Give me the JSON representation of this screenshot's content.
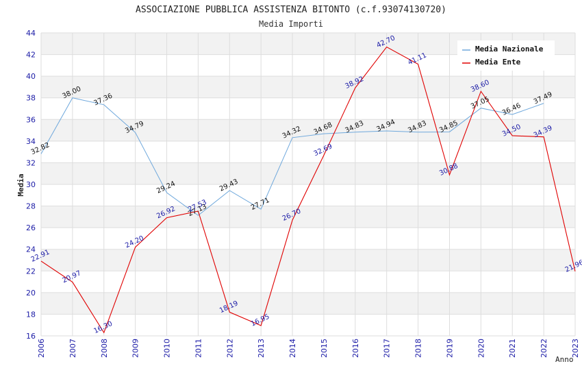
{
  "chart_data": {
    "type": "line",
    "title": "ASSOCIAZIONE PUBBLICA ASSISTENZA BITONTO (c.f.93074130720)",
    "subtitle": "Media Importi",
    "xlabel": "Anno",
    "ylabel": "Media",
    "ylim": [
      16,
      44
    ],
    "yticks": [
      16,
      18,
      20,
      22,
      24,
      26,
      28,
      30,
      32,
      34,
      36,
      38,
      40,
      42,
      44
    ],
    "x": [
      "2006",
      "2007",
      "2008",
      "2009",
      "2010",
      "2011",
      "2012",
      "2013",
      "2014",
      "2015",
      "2016",
      "2017",
      "2018",
      "2019",
      "2020",
      "2021",
      "2022",
      "2023"
    ],
    "grid": true,
    "legend_position": "top-right",
    "series": [
      {
        "name": "Media Nazionale",
        "color": "#6fa8dc",
        "values": [
          32.82,
          38.0,
          37.36,
          34.79,
          29.24,
          27.13,
          29.43,
          27.71,
          34.32,
          34.68,
          34.83,
          34.94,
          34.83,
          34.85,
          37.05,
          36.46,
          37.49,
          null
        ],
        "labels": [
          "32.82",
          "38.00",
          "37.36",
          "34.79",
          "29.24",
          "27.13",
          "29.43",
          "27.71",
          "34.32",
          "34.68",
          "34.83",
          "34.94",
          "34.83",
          "34.85",
          "37.05",
          "36.46",
          "37.49",
          null
        ]
      },
      {
        "name": "Media Ente",
        "color": "#e00000",
        "values": [
          22.91,
          20.97,
          16.3,
          24.2,
          26.92,
          27.53,
          18.19,
          16.95,
          26.7,
          32.69,
          38.92,
          42.7,
          41.11,
          30.88,
          38.6,
          34.5,
          34.39,
          21.96
        ],
        "labels": [
          "22.91",
          "20.97",
          "16.30",
          "24.20",
          "26.92",
          "27.53",
          "18.19",
          "16.95",
          "26.70",
          "32.69",
          "38.92",
          "42.70",
          "41.11",
          "30.88",
          "38.60",
          "34.50",
          "34.39",
          "21.96"
        ]
      }
    ]
  }
}
